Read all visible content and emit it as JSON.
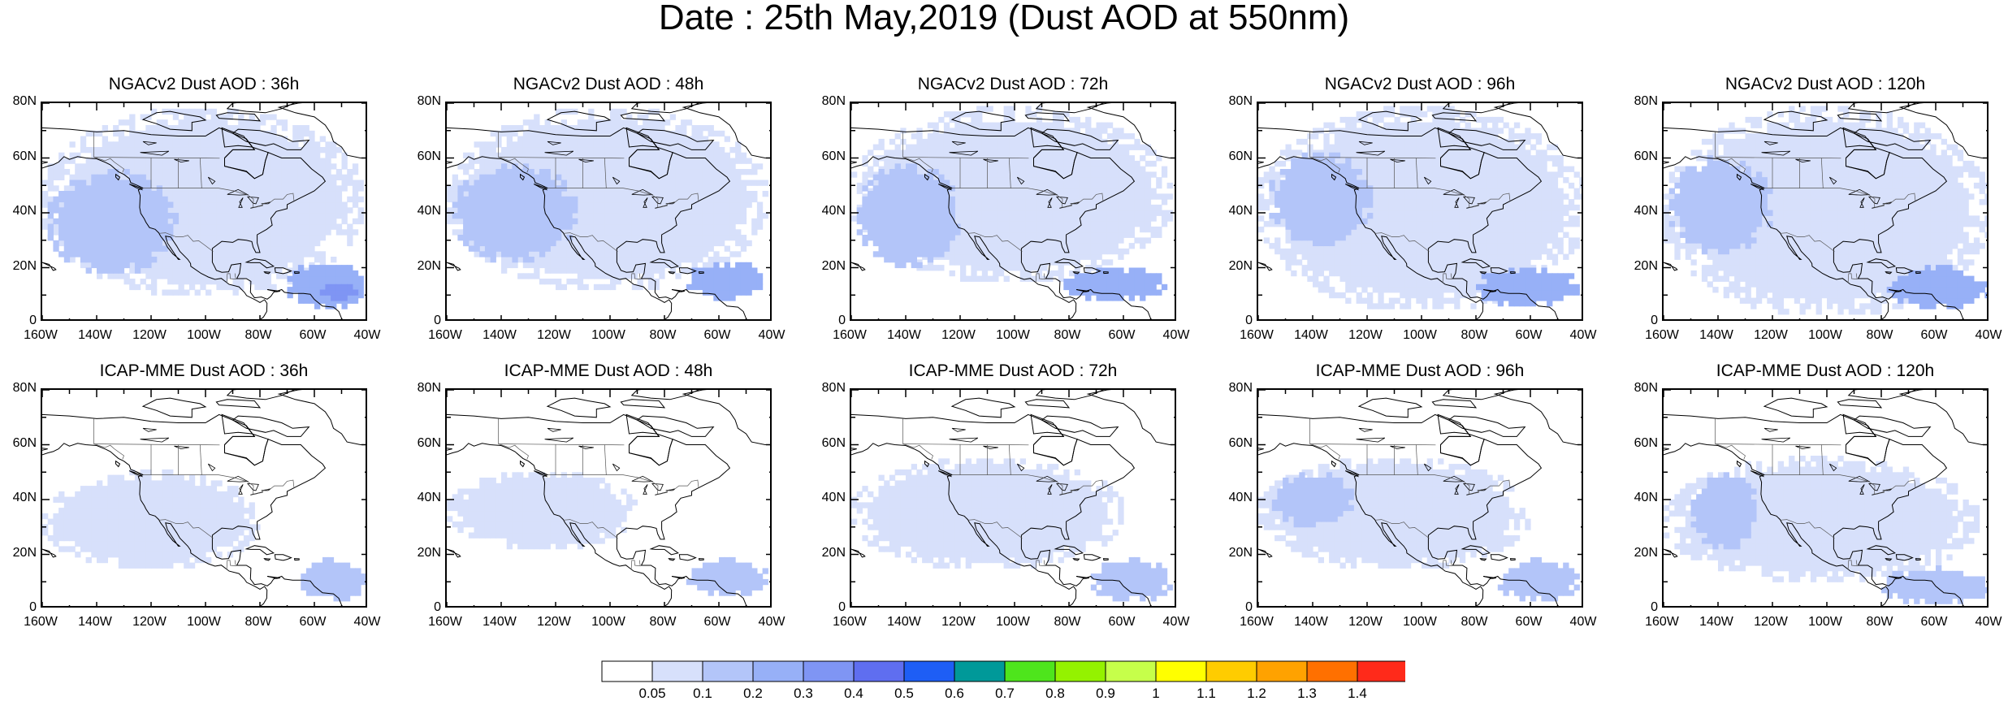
{
  "title": "Date : 25th May,2019 (Dust AOD at 550nm)",
  "map": {
    "projection": "cylindrical equidistant",
    "lon_range": [
      -160,
      -40
    ],
    "lat_range": [
      0,
      80
    ],
    "lon_ticks": [
      "160W",
      "140W",
      "120W",
      "100W",
      "80W",
      "60W",
      "40W"
    ],
    "lat_ticks": [
      "0",
      "20N",
      "40N",
      "60N",
      "80N"
    ],
    "field": "Dust AOD at 550nm"
  },
  "panels": [
    {
      "title": "NGACv2 Dust AOD : 36h",
      "model": "NGACv2",
      "lead": "36h",
      "dust_regions": [
        {
          "level": 0.05,
          "desc": "broad background",
          "lon": [
            -160,
            -42
          ],
          "lat": [
            10,
            78
          ]
        },
        {
          "level": 0.1,
          "lon": [
            -158,
            -110
          ],
          "lat": [
            18,
            55
          ]
        },
        {
          "level": 0.2,
          "lon": [
            -70,
            -40
          ],
          "lat": [
            5,
            22
          ]
        },
        {
          "level": 0.3,
          "lon": [
            -58,
            -45
          ],
          "lat": [
            8,
            15
          ]
        }
      ]
    },
    {
      "title": "NGACv2 Dust AOD : 48h",
      "model": "NGACv2",
      "lead": "48h",
      "dust_regions": [
        {
          "level": 0.05,
          "lon": [
            -160,
            -42
          ],
          "lat": [
            12,
            78
          ]
        },
        {
          "level": 0.1,
          "lon": [
            -158,
            -112
          ],
          "lat": [
            22,
            58
          ]
        },
        {
          "level": 0.2,
          "lon": [
            -72,
            -42
          ],
          "lat": [
            8,
            22
          ]
        }
      ]
    },
    {
      "title": "NGACv2 Dust AOD : 72h",
      "model": "NGACv2",
      "lead": "72h",
      "dust_regions": [
        {
          "level": 0.05,
          "lon": [
            -160,
            -42
          ],
          "lat": [
            15,
            78
          ]
        },
        {
          "level": 0.1,
          "lon": [
            -158,
            -120
          ],
          "lat": [
            20,
            58
          ]
        },
        {
          "level": 0.2,
          "lon": [
            -82,
            -45
          ],
          "lat": [
            8,
            20
          ]
        }
      ]
    },
    {
      "title": "NGACv2 Dust AOD : 96h",
      "model": "NGACv2",
      "lead": "96h",
      "dust_regions": [
        {
          "level": 0.05,
          "lon": [
            -160,
            -40
          ],
          "lat": [
            5,
            78
          ]
        },
        {
          "level": 0.1,
          "lon": [
            -156,
            -118
          ],
          "lat": [
            28,
            62
          ]
        },
        {
          "level": 0.2,
          "lon": [
            -80,
            -42
          ],
          "lat": [
            6,
            20
          ]
        }
      ]
    },
    {
      "title": "NGACv2 Dust AOD : 120h",
      "model": "NGACv2",
      "lead": "120h",
      "dust_regions": [
        {
          "level": 0.05,
          "lon": [
            -160,
            -40
          ],
          "lat": [
            3,
            78
          ]
        },
        {
          "level": 0.1,
          "lon": [
            -158,
            -120
          ],
          "lat": [
            25,
            60
          ]
        },
        {
          "level": 0.2,
          "lon": [
            -78,
            -40
          ],
          "lat": [
            5,
            20
          ]
        }
      ]
    },
    {
      "title": "ICAP-MME Dust AOD : 36h",
      "model": "ICAP-MME",
      "lead": "36h",
      "dust_regions": [
        {
          "level": 0.05,
          "lon": [
            -160,
            -80
          ],
          "lat": [
            15,
            50
          ]
        },
        {
          "level": 0.1,
          "lon": [
            -65,
            -42
          ],
          "lat": [
            3,
            18
          ]
        }
      ]
    },
    {
      "title": "ICAP-MME Dust AOD : 48h",
      "model": "ICAP-MME",
      "lead": "48h",
      "dust_regions": [
        {
          "level": 0.05,
          "lon": [
            -160,
            -90
          ],
          "lat": [
            22,
            50
          ]
        },
        {
          "level": 0.1,
          "lon": [
            -72,
            -42
          ],
          "lat": [
            5,
            18
          ]
        }
      ]
    },
    {
      "title": "ICAP-MME Dust AOD : 72h",
      "model": "ICAP-MME",
      "lead": "72h",
      "dust_regions": [
        {
          "level": 0.05,
          "lon": [
            -160,
            -60
          ],
          "lat": [
            15,
            55
          ]
        },
        {
          "level": 0.1,
          "lon": [
            -72,
            -42
          ],
          "lat": [
            3,
            18
          ]
        }
      ]
    },
    {
      "title": "ICAP-MME Dust AOD : 96h",
      "model": "ICAP-MME",
      "lead": "96h",
      "dust_regions": [
        {
          "level": 0.05,
          "lon": [
            -160,
            -60
          ],
          "lat": [
            15,
            55
          ]
        },
        {
          "level": 0.1,
          "lon": [
            -155,
            -125
          ],
          "lat": [
            30,
            50
          ]
        },
        {
          "level": 0.1,
          "lon": [
            -72,
            -42
          ],
          "lat": [
            3,
            18
          ]
        }
      ]
    },
    {
      "title": "ICAP-MME Dust AOD : 120h",
      "model": "ICAP-MME",
      "lead": "120h",
      "dust_regions": [
        {
          "level": 0.05,
          "lon": [
            -160,
            -45
          ],
          "lat": [
            10,
            55
          ]
        },
        {
          "level": 0.1,
          "lon": [
            -150,
            -125
          ],
          "lat": [
            22,
            50
          ]
        },
        {
          "level": 0.1,
          "lon": [
            -80,
            -40
          ],
          "lat": [
            2,
            15
          ]
        }
      ]
    }
  ],
  "colorbar": {
    "colors": [
      "#ffffff",
      "#d7e0fb",
      "#b3c5f9",
      "#97b0f7",
      "#7f95f4",
      "#5f6ef0",
      "#1e5ef5",
      "#009999",
      "#4ee51c",
      "#94f200",
      "#c6ff4a",
      "#ffff00",
      "#ffcc00",
      "#ffa200",
      "#ff7000",
      "#ff2a1a"
    ],
    "labels": [
      "0.05",
      "0.1",
      "0.2",
      "0.3",
      "0.4",
      "0.5",
      "0.6",
      "0.7",
      "0.8",
      "0.9",
      "1",
      "1.1",
      "1.2",
      "1.3",
      "1.4"
    ]
  }
}
